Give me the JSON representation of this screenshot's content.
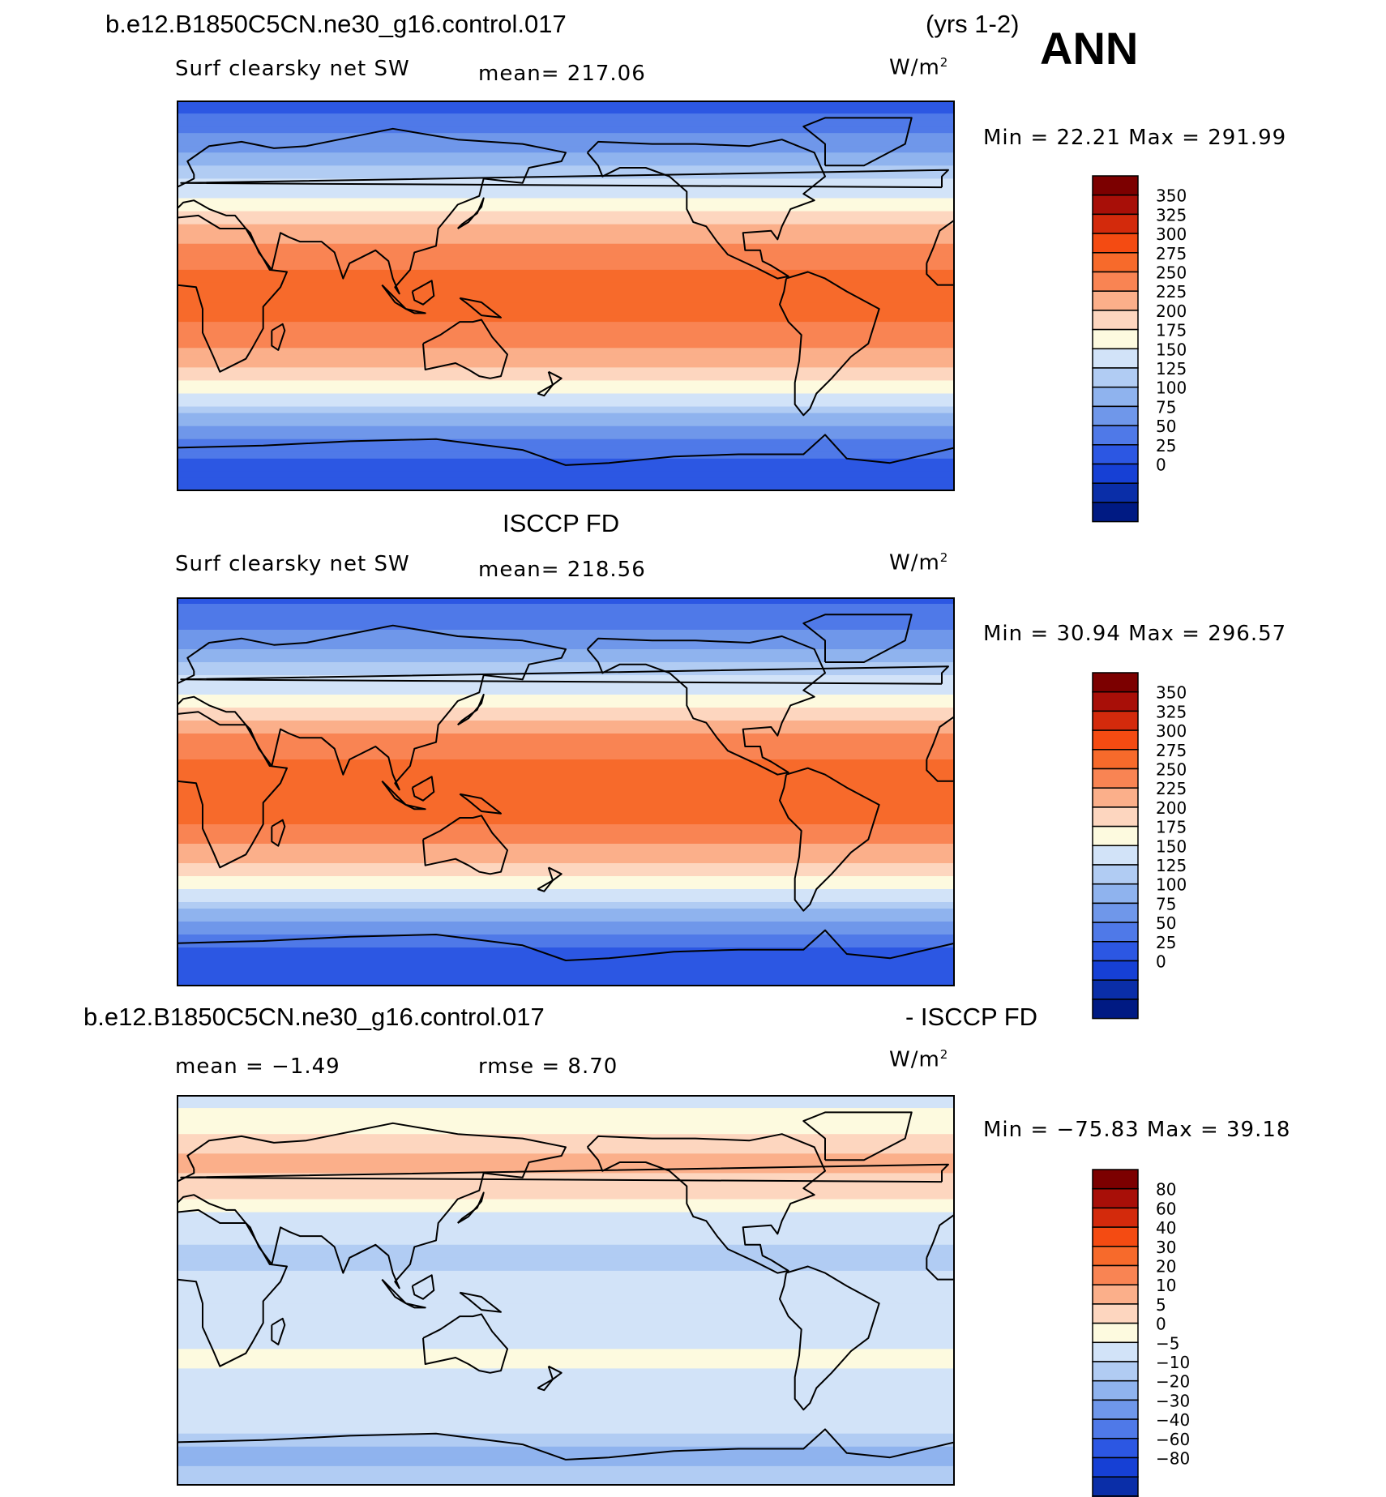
{
  "header": {
    "case_name": "b.e12.B1850C5CN.ne30_g16.control.017",
    "years": "(yrs 1-2)",
    "season": "ANN"
  },
  "colors": {
    "warm": [
      "#fdfadf",
      "#fdd6bf",
      "#fbaf8a",
      "#f98453",
      "#f76a2b",
      "#f44b12",
      "#d32a0c",
      "#a80f08",
      "#7c0000"
    ],
    "cool": [
      "#d2e3f8",
      "#b1ccf3",
      "#8fb3ee",
      "#6f97ea",
      "#4f79e8",
      "#2c57e3",
      "#1640d5",
      "#0a2ea8",
      "#001a83"
    ]
  },
  "chart_data": [
    {
      "type": "heatmap",
      "panel": "model",
      "title": "",
      "variable": "Surf clearsky net SW",
      "mean_label": "mean=  217.06",
      "mean": 217.06,
      "units": "W/m",
      "units_exp": "2",
      "minmax_label": "Min =   22.21  Max  =  291.99",
      "min": 22.21,
      "max": 291.99,
      "levels": [
        "350",
        "325",
        "300",
        "275",
        "250",
        "225",
        "200",
        "175",
        "150",
        "125",
        "100",
        "75",
        "50",
        "25",
        "0"
      ],
      "lat_profile": [
        {
          "lat": 90,
          "value": 40
        },
        {
          "lat": 75,
          "value": 70
        },
        {
          "lat": 60,
          "value": 125
        },
        {
          "lat": 45,
          "value": 175
        },
        {
          "lat": 30,
          "value": 235
        },
        {
          "lat": 15,
          "value": 272
        },
        {
          "lat": 0,
          "value": 285
        },
        {
          "lat": -15,
          "value": 272
        },
        {
          "lat": -30,
          "value": 232
        },
        {
          "lat": -45,
          "value": 175
        },
        {
          "lat": -60,
          "value": 100
        },
        {
          "lat": -75,
          "value": 45
        },
        {
          "lat": -90,
          "value": 30
        }
      ]
    },
    {
      "type": "heatmap",
      "panel": "obs",
      "title": "ISCCP FD",
      "variable": "Surf clearsky net SW",
      "mean_label": "mean=  218.56",
      "mean": 218.56,
      "units": "W/m",
      "units_exp": "2",
      "minmax_label": "Min =   30.94  Max  =  296.57",
      "min": 30.94,
      "max": 296.57,
      "levels": [
        "350",
        "325",
        "300",
        "275",
        "250",
        "225",
        "200",
        "175",
        "150",
        "125",
        "100",
        "75",
        "50",
        "25",
        "0"
      ],
      "lat_profile": [
        {
          "lat": 90,
          "value": 45
        },
        {
          "lat": 75,
          "value": 75
        },
        {
          "lat": 60,
          "value": 120
        },
        {
          "lat": 45,
          "value": 180
        },
        {
          "lat": 30,
          "value": 240
        },
        {
          "lat": 15,
          "value": 275
        },
        {
          "lat": 0,
          "value": 288
        },
        {
          "lat": -15,
          "value": 275
        },
        {
          "lat": -30,
          "value": 235
        },
        {
          "lat": -45,
          "value": 178
        },
        {
          "lat": -60,
          "value": 95
        },
        {
          "lat": -75,
          "value": 40
        },
        {
          "lat": -90,
          "value": 35
        }
      ]
    },
    {
      "type": "heatmap",
      "panel": "difference",
      "title": "b.e12.B1850C5CN.ne30_g16.control.017",
      "title_right": "- ISCCP FD",
      "mean_label": "mean  =   −1.49",
      "mean": -1.49,
      "rmse_label": "rmse  =    8.70",
      "rmse": 8.7,
      "units": "W/m",
      "units_exp": "2",
      "minmax_label": "Min  =  −75.83  Max  =    39.18",
      "min": -75.83,
      "max": 39.18,
      "levels": [
        "80",
        "60",
        "40",
        "30",
        "20",
        "10",
        "5",
        "0",
        "−5",
        "−10",
        "−20",
        "−30",
        "−40",
        "−60",
        "−80"
      ],
      "lat_profile": [
        {
          "lat": 90,
          "value": -3
        },
        {
          "lat": 75,
          "value": 4
        },
        {
          "lat": 60,
          "value": 12
        },
        {
          "lat": 45,
          "value": 6
        },
        {
          "lat": 30,
          "value": -3
        },
        {
          "lat": 15,
          "value": -6
        },
        {
          "lat": 0,
          "value": -4
        },
        {
          "lat": -15,
          "value": -5
        },
        {
          "lat": -30,
          "value": 2
        },
        {
          "lat": -45,
          "value": -3
        },
        {
          "lat": -60,
          "value": -2
        },
        {
          "lat": -75,
          "value": -12
        },
        {
          "lat": -90,
          "value": -6
        }
      ]
    }
  ]
}
